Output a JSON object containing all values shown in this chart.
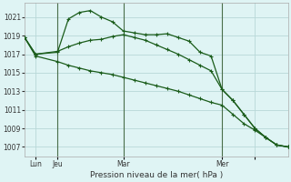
{
  "background_color": "#dff4f4",
  "grid_color": "#b8d8d8",
  "line_color": "#1a5c1a",
  "title": "Pression niveau de la mer( hPa )",
  "ylim": [
    1006.0,
    1022.5
  ],
  "yticks": [
    1007,
    1009,
    1011,
    1013,
    1015,
    1017,
    1019,
    1021
  ],
  "xlim": [
    0,
    24
  ],
  "vline_x": [
    3,
    9,
    18
  ],
  "xlabel_ticks": [
    1,
    3,
    9,
    18,
    21
  ],
  "xlabel_labels": [
    "Lun",
    "Jeu",
    "Mar",
    "Mer",
    ""
  ],
  "s1_x": [
    0,
    1,
    3,
    4,
    5,
    6,
    7,
    8,
    9,
    10,
    11,
    12,
    13,
    14,
    15,
    16,
    17,
    18,
    19,
    20,
    21,
    22,
    23,
    24
  ],
  "s1_y": [
    1018.8,
    1017.0,
    1017.2,
    1020.8,
    1021.5,
    1021.7,
    1021.0,
    1020.5,
    1019.5,
    1019.3,
    1019.1,
    1019.1,
    1019.2,
    1018.8,
    1018.4,
    1017.2,
    1016.8,
    1013.2,
    1012.0,
    1010.5,
    1009.0,
    1008.0,
    1007.2,
    1007.0
  ],
  "s2_x": [
    0,
    1,
    3,
    4,
    5,
    6,
    7,
    8,
    9,
    10,
    11,
    12,
    13,
    14,
    15,
    16,
    17,
    18,
    19,
    20,
    21,
    22,
    23,
    24
  ],
  "s2_y": [
    1018.8,
    1017.0,
    1017.3,
    1017.8,
    1018.2,
    1018.5,
    1018.6,
    1018.9,
    1019.1,
    1018.8,
    1018.5,
    1018.0,
    1017.5,
    1017.0,
    1016.4,
    1015.8,
    1015.2,
    1013.2,
    1012.0,
    1010.5,
    1009.0,
    1008.0,
    1007.2,
    1007.0
  ],
  "s3_x": [
    0,
    1,
    3,
    4,
    5,
    6,
    7,
    8,
    9,
    10,
    11,
    12,
    13,
    14,
    15,
    16,
    17,
    18,
    19,
    20,
    21,
    22,
    23,
    24
  ],
  "s3_y": [
    1018.8,
    1016.8,
    1016.2,
    1015.8,
    1015.5,
    1015.2,
    1015.0,
    1014.8,
    1014.5,
    1014.2,
    1013.9,
    1013.6,
    1013.3,
    1013.0,
    1012.6,
    1012.2,
    1011.8,
    1011.5,
    1010.5,
    1009.5,
    1008.8,
    1008.0,
    1007.2,
    1007.0
  ],
  "marker": "+",
  "markersize": 3.5,
  "linewidth": 0.9
}
